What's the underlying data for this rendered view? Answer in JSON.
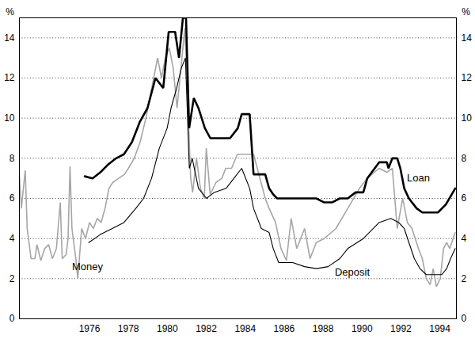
{
  "chart_data": {
    "type": "line",
    "y_label": "%",
    "xlim": [
      1972.4,
      1994.85
    ],
    "xticks": [
      1976,
      1978,
      1980,
      1982,
      1984,
      1986,
      1988,
      1990,
      1992,
      1994
    ],
    "ylim": [
      0,
      15
    ],
    "yticks": [
      0,
      2,
      4,
      6,
      8,
      10,
      12,
      14
    ],
    "grid": true,
    "series": [
      {
        "name": "Money",
        "color": "#a6a6a6",
        "x": [
          1972.4,
          1972.5,
          1972.7,
          1972.8,
          1973.0,
          1973.2,
          1973.3,
          1973.5,
          1973.7,
          1973.9,
          1974.1,
          1974.3,
          1974.5,
          1974.6,
          1974.8,
          1974.9,
          1975.0,
          1975.1,
          1975.3,
          1975.4,
          1975.6,
          1975.8,
          1976.0,
          1976.2,
          1976.4,
          1976.6,
          1976.8,
          1977.0,
          1977.2,
          1977.5,
          1977.8,
          1978.0,
          1978.3,
          1978.6,
          1978.9,
          1979.1,
          1979.3,
          1979.5,
          1979.7,
          1979.9,
          1980.1,
          1980.3,
          1980.5,
          1980.7,
          1980.9,
          1981.0,
          1981.2,
          1981.3,
          1981.5,
          1981.7,
          1981.9,
          1982.0,
          1982.2,
          1982.5,
          1982.8,
          1983.0,
          1983.3,
          1983.6,
          1983.9,
          1984.43,
          1985.03,
          1985.23,
          1985.56,
          1985.84,
          1986.12,
          1986.36,
          1986.65,
          1987.05,
          1987.33,
          1987.65,
          1988.06,
          1988.66,
          1989.27,
          1989.87,
          1990.27,
          1990.88,
          1991.28,
          1991.56,
          1991.81,
          1992.09,
          1992.33,
          1992.57,
          1992.9,
          1993.1,
          1993.3,
          1993.5,
          1993.66,
          1993.82,
          1994.02,
          1994.19,
          1994.35,
          1994.51,
          1994.68,
          1994.79
        ],
        "values": [
          7.2,
          5.5,
          7.4,
          4.5,
          3.0,
          3.0,
          3.7,
          2.9,
          3.5,
          3.7,
          3.0,
          3.5,
          5.8,
          3.0,
          3.2,
          4.0,
          7.6,
          4.5,
          3.0,
          2.0,
          4.5,
          4.0,
          4.8,
          4.5,
          5.0,
          4.8,
          5.5,
          6.5,
          6.8,
          7.0,
          7.2,
          7.5,
          8.0,
          8.8,
          10.0,
          11.0,
          12.0,
          13.0,
          12.0,
          13.0,
          13.5,
          12.5,
          10.5,
          12.5,
          14.5,
          12.0,
          7.0,
          6.3,
          8.0,
          6.5,
          6.0,
          8.5,
          6.2,
          6.8,
          7.0,
          7.5,
          7.5,
          8.2,
          8.2,
          8.2,
          6.0,
          5.5,
          4.8,
          3.5,
          2.9,
          5.0,
          3.5,
          4.5,
          3.0,
          3.8,
          4.0,
          4.5,
          5.5,
          6.5,
          7.0,
          7.5,
          7.3,
          7.5,
          4.5,
          6.0,
          4.8,
          4.5,
          3.5,
          3.0,
          2.0,
          1.7,
          2.5,
          1.6,
          2.0,
          3.5,
          3.8,
          3.5,
          4.0,
          4.3
        ]
      },
      {
        "name": "Loan",
        "color": "#000000",
        "x": [
          1975.76,
          1976.16,
          1976.56,
          1976.97,
          1977.37,
          1977.77,
          1978.18,
          1978.58,
          1978.98,
          1979.39,
          1979.79,
          1980.07,
          1980.4,
          1980.6,
          1980.8,
          1980.96,
          1981.12,
          1981.36,
          1981.6,
          1981.93,
          1982.21,
          1983.22,
          1983.62,
          1983.82,
          1984.23,
          1984.43,
          1985.03,
          1985.23,
          1985.44,
          1985.64,
          1987.65,
          1988.06,
          1988.46,
          1988.86,
          1989.27,
          1989.67,
          1990.07,
          1990.27,
          1990.88,
          1991.28,
          1991.36,
          1991.56,
          1991.81,
          1991.97,
          1992.17,
          1992.41,
          1992.81,
          1993.1,
          1993.9,
          1994.31,
          1994.79
        ],
        "values": [
          7.1,
          7.0,
          7.3,
          7.7,
          8.0,
          8.2,
          8.8,
          9.8,
          10.5,
          12.0,
          11.5,
          14.3,
          14.3,
          13.0,
          15.0,
          15.0,
          9.5,
          11.0,
          10.5,
          9.5,
          9.0,
          9.0,
          9.5,
          10.2,
          10.2,
          7.2,
          7.2,
          6.5,
          6.2,
          6.0,
          6.0,
          5.8,
          5.8,
          6.0,
          6.0,
          6.3,
          6.3,
          7.0,
          7.8,
          7.8,
          7.5,
          8.0,
          8.0,
          7.5,
          6.5,
          6.0,
          5.5,
          5.3,
          5.3,
          5.7,
          6.5
        ]
      },
      {
        "name": "Deposit",
        "color": "#000000",
        "x": [
          1975.96,
          1976.56,
          1977.17,
          1977.77,
          1978.38,
          1978.78,
          1979.19,
          1979.59,
          1979.99,
          1980.19,
          1980.48,
          1980.72,
          1980.93,
          1981.13,
          1981.28,
          1981.6,
          1982.01,
          1982.41,
          1983.02,
          1983.42,
          1983.82,
          1984.23,
          1984.43,
          1984.83,
          1985.23,
          1985.44,
          1985.72,
          1986.44,
          1987.05,
          1987.65,
          1988.26,
          1988.86,
          1989.27,
          1990.07,
          1990.88,
          1991.48,
          1991.89,
          1992.17,
          1992.41,
          1992.69,
          1992.98,
          1993.3,
          1994.1,
          1994.35,
          1994.55,
          1994.79
        ],
        "values": [
          3.8,
          4.2,
          4.5,
          4.8,
          5.5,
          6.0,
          7.0,
          8.5,
          9.5,
          10.5,
          11.5,
          12.5,
          13.0,
          7.5,
          8.0,
          6.5,
          6.0,
          6.3,
          6.5,
          7.0,
          7.5,
          6.5,
          5.5,
          4.5,
          4.3,
          3.5,
          2.8,
          2.8,
          2.6,
          2.5,
          2.6,
          3.0,
          3.5,
          4.0,
          4.8,
          5.0,
          4.8,
          4.5,
          3.8,
          3.0,
          2.5,
          2.2,
          2.2,
          2.5,
          3.0,
          3.5
        ]
      }
    ]
  }
}
